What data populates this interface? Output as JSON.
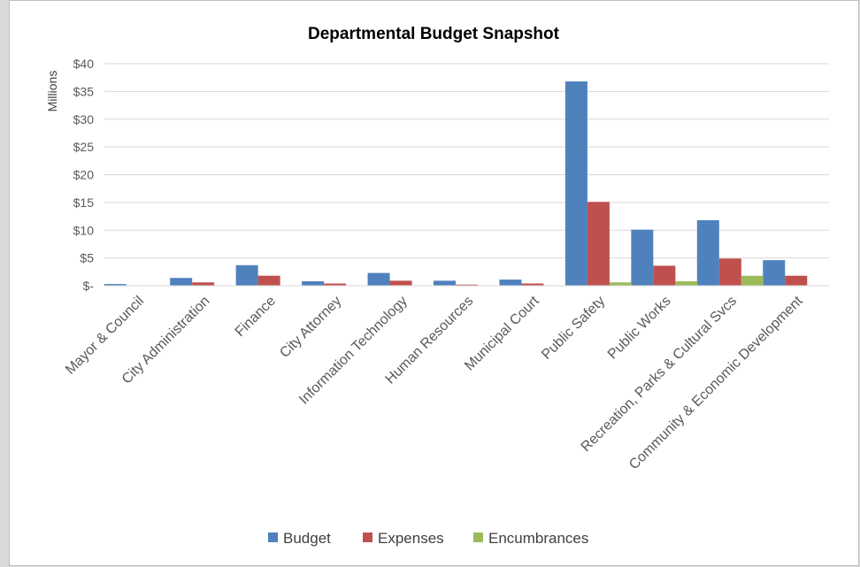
{
  "chart_data": {
    "type": "bar",
    "title": "Departmental Budget Snapshot",
    "ylabel": "Millions",
    "xlabel": "",
    "ylim": [
      0,
      40
    ],
    "ytick_values": [
      0,
      5,
      10,
      15,
      20,
      25,
      30,
      35,
      40
    ],
    "ytick_labels": [
      "$-",
      "$5",
      "$10",
      "$15",
      "$20",
      "$25",
      "$30",
      "$35",
      "$40"
    ],
    "grid": true,
    "legend_position": "bottom",
    "categories": [
      "Mayor & Council",
      "City Administration",
      "Finance",
      "City Attorney",
      "Information Technology",
      "Human Resources",
      "Municipal Court",
      "Public Safety",
      "Public Works",
      "Recreation, Parks & Cultural Svcs",
      "Community & Economic Development"
    ],
    "series": [
      {
        "name": "Budget",
        "color": "#4f81bd",
        "values": [
          0.3,
          1.4,
          3.7,
          0.8,
          2.3,
          0.9,
          1.1,
          36.8,
          10.1,
          11.8,
          4.6
        ]
      },
      {
        "name": "Expenses",
        "color": "#c0504d",
        "values": [
          0.05,
          0.6,
          1.8,
          0.4,
          0.9,
          0.2,
          0.4,
          15.1,
          3.6,
          4.9,
          1.8
        ]
      },
      {
        "name": "Encumbrances",
        "color": "#9bbb59",
        "values": [
          0,
          0,
          0,
          0,
          0,
          0,
          0,
          0.6,
          0.8,
          1.8,
          0
        ]
      }
    ]
  }
}
